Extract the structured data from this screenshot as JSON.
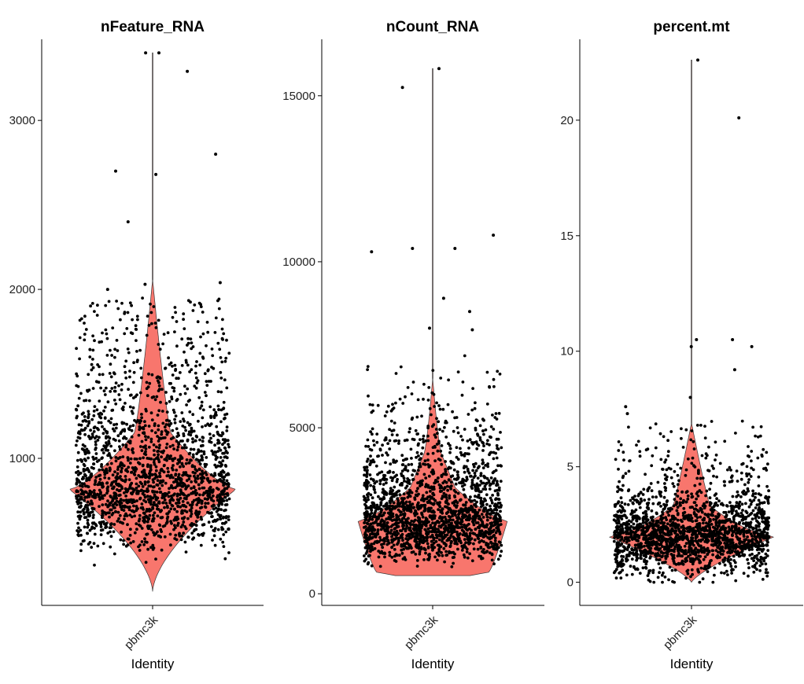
{
  "chart_data": [
    {
      "type": "violin",
      "title": "nFeature_RNA",
      "xlabel": "Identity",
      "ylabel": "",
      "categories": [
        "pbmc3k"
      ],
      "ylim": [
        130,
        3480
      ],
      "yticks": [
        1000,
        2000,
        3000
      ],
      "fill_color": "#f8766d",
      "min": 212,
      "max": 3400,
      "median": 817,
      "n_points": 2700,
      "outliers": [
        3400,
        3400,
        3290,
        2800,
        2700,
        2680,
        2400,
        2040,
        2030,
        2000
      ]
    },
    {
      "type": "violin",
      "title": "nCount_RNA",
      "xlabel": "Identity",
      "ylabel": "",
      "categories": [
        "pbmc3k"
      ],
      "ylim": [
        -350,
        16700
      ],
      "yticks": [
        0,
        5000,
        10000,
        15000
      ],
      "fill_color": "#f8766d",
      "min": 548,
      "max": 15818,
      "median": 2197,
      "n_points": 2700,
      "outliers": [
        15818,
        15250,
        10800,
        10400,
        10400,
        10300,
        8900,
        8500,
        8000,
        7950
      ]
    },
    {
      "type": "violin",
      "title": "percent.mt",
      "xlabel": "Identity",
      "ylabel": "",
      "categories": [
        "pbmc3k"
      ],
      "ylim": [
        -1,
        23.5
      ],
      "yticks": [
        0,
        5,
        10,
        15,
        20
      ],
      "fill_color": "#f8766d",
      "min": 0,
      "max": 22.6,
      "median": 2.0,
      "n_points": 2700,
      "outliers": [
        22.6,
        20.1,
        10.5,
        10.5,
        10.2,
        10.2,
        9.2,
        8.0,
        7.6,
        7.3
      ]
    }
  ]
}
